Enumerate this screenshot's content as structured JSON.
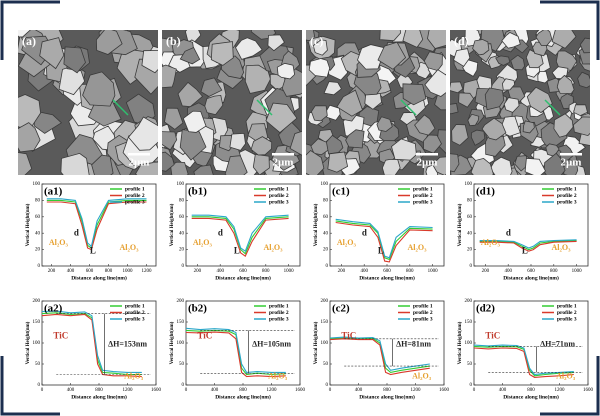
{
  "images": [
    {
      "label": "(a)",
      "scale": "2μm"
    },
    {
      "label": "(b)",
      "scale": "2μm"
    },
    {
      "label": "(c)",
      "scale": "2μm"
    },
    {
      "label": "(d)",
      "scale": "2μm"
    }
  ],
  "chart_data": [
    {
      "type": "line",
      "label": "(a1)",
      "xlabel": "Distance along line(nm)",
      "ylabel": "Vertical Height(nm)",
      "xlim": [
        100,
        1300
      ],
      "xticks": [
        200,
        400,
        600,
        800,
        1000,
        1200
      ],
      "ylim": [
        0,
        100
      ],
      "yticks": [
        0,
        20,
        40,
        60,
        80,
        100
      ],
      "x": [
        150,
        300,
        450,
        520,
        580,
        620,
        680,
        800,
        1000,
        1200
      ],
      "series": [
        {
          "name": "profile 1",
          "color": "#33cc33",
          "values": [
            80,
            80,
            78,
            55,
            25,
            22,
            50,
            78,
            80,
            80
          ]
        },
        {
          "name": "profile 2",
          "color": "#d93a2b",
          "values": [
            78,
            78,
            76,
            50,
            22,
            20,
            45,
            76,
            78,
            78
          ]
        },
        {
          "name": "profile 3",
          "color": "#2aa7c9",
          "values": [
            82,
            82,
            80,
            58,
            28,
            24,
            55,
            80,
            82,
            82
          ]
        }
      ],
      "annotations": [
        {
          "text": "Al₂O₃",
          "color": "#e6a030"
        },
        {
          "text": "Al₂O₃",
          "color": "#e6a030"
        },
        {
          "text": "d",
          "color": "#222222"
        },
        {
          "text": "L",
          "color": "#222222"
        }
      ]
    },
    {
      "type": "line",
      "label": "(b1)",
      "xlabel": "Distance along line(nm)",
      "ylabel": "Vertical Height(nm)",
      "xlim": [
        100,
        1100
      ],
      "xticks": [
        200,
        400,
        600,
        800,
        1000
      ],
      "ylim": [
        0,
        100
      ],
      "yticks": [
        0,
        20,
        40,
        60,
        80,
        100
      ],
      "x": [
        150,
        300,
        450,
        520,
        580,
        620,
        680,
        800,
        1000
      ],
      "series": [
        {
          "name": "profile 1",
          "color": "#33cc33",
          "values": [
            60,
            60,
            58,
            45,
            20,
            15,
            35,
            58,
            60
          ]
        },
        {
          "name": "profile 2",
          "color": "#d93a2b",
          "values": [
            58,
            58,
            56,
            40,
            16,
            12,
            30,
            56,
            58
          ]
        },
        {
          "name": "profile 3",
          "color": "#2aa7c9",
          "values": [
            62,
            62,
            60,
            48,
            22,
            18,
            40,
            60,
            62
          ]
        }
      ],
      "annotations": [
        {
          "text": "Al₂O₃",
          "color": "#e6a030"
        },
        {
          "text": "Al₂O₃",
          "color": "#e6a030"
        },
        {
          "text": "d",
          "color": "#222222"
        },
        {
          "text": "L",
          "color": "#222222"
        }
      ]
    },
    {
      "type": "line",
      "label": "(c1)",
      "xlabel": "Distance along line(nm)",
      "ylabel": "Vertical Height(nm)",
      "xlim": [
        100,
        1100
      ],
      "xticks": [
        200,
        400,
        600,
        800,
        1000
      ],
      "ylim": [
        0,
        100
      ],
      "yticks": [
        0,
        20,
        40,
        60,
        80,
        100
      ],
      "x": [
        150,
        300,
        450,
        520,
        580,
        620,
        680,
        800,
        1000
      ],
      "series": [
        {
          "name": "profile 1",
          "color": "#33cc33",
          "values": [
            55,
            52,
            50,
            40,
            10,
            8,
            30,
            46,
            45
          ]
        },
        {
          "name": "profile 2",
          "color": "#d93a2b",
          "values": [
            53,
            50,
            48,
            35,
            6,
            5,
            25,
            44,
            43
          ]
        },
        {
          "name": "profile 3",
          "color": "#2aa7c9",
          "values": [
            57,
            54,
            52,
            42,
            12,
            10,
            35,
            48,
            47
          ]
        }
      ],
      "annotations": [
        {
          "text": "Al₂O₃",
          "color": "#e6a030"
        },
        {
          "text": "Al₂O₃",
          "color": "#e6a030"
        },
        {
          "text": "d",
          "color": "#222222"
        },
        {
          "text": "L",
          "color": "#222222"
        }
      ]
    },
    {
      "type": "line",
      "label": "(d1)",
      "xlabel": "Distance along line(nm)",
      "ylabel": "Vertical Height(nm)",
      "xlim": [
        100,
        1100
      ],
      "xticks": [
        200,
        400,
        600,
        800,
        1000
      ],
      "ylim": [
        0,
        100
      ],
      "yticks": [
        0,
        20,
        40,
        60,
        80,
        100
      ],
      "x": [
        150,
        300,
        450,
        520,
        580,
        620,
        680,
        800,
        1000
      ],
      "series": [
        {
          "name": "profile 1",
          "color": "#33cc33",
          "values": [
            30,
            30,
            29,
            24,
            20,
            22,
            28,
            30,
            31
          ]
        },
        {
          "name": "profile 2",
          "color": "#d93a2b",
          "values": [
            29,
            29,
            28,
            22,
            18,
            20,
            26,
            29,
            30
          ]
        },
        {
          "name": "profile 3",
          "color": "#2aa7c9",
          "values": [
            31,
            31,
            30,
            26,
            22,
            24,
            30,
            31,
            32
          ]
        }
      ],
      "annotations": [
        {
          "text": "Al₂O₃",
          "color": "#e6a030"
        },
        {
          "text": "Al₂O₃",
          "color": "#e6a030"
        },
        {
          "text": "d",
          "color": "#222222"
        },
        {
          "text": "L",
          "color": "#222222"
        }
      ]
    },
    {
      "type": "line",
      "label": "(a2)",
      "xlabel": "Distance along line(nm)",
      "ylabel": "Vertical Height(nm)",
      "xlim": [
        0,
        1600
      ],
      "xticks": [
        0,
        400,
        800,
        1200,
        1600
      ],
      "ylim": [
        0,
        200
      ],
      "yticks": [
        0,
        50,
        100,
        150,
        200
      ],
      "x": [
        0,
        200,
        400,
        600,
        700,
        780,
        850,
        1000,
        1200,
        1400
      ],
      "series": [
        {
          "name": "profile 1",
          "color": "#33cc33",
          "values": [
            170,
            172,
            168,
            170,
            160,
            60,
            30,
            28,
            25,
            25
          ]
        },
        {
          "name": "profile 2",
          "color": "#d93a2b",
          "values": [
            165,
            168,
            165,
            168,
            155,
            50,
            25,
            22,
            22,
            20
          ]
        },
        {
          "name": "profile 3",
          "color": "#2aa7c9",
          "values": [
            175,
            176,
            172,
            174,
            165,
            70,
            35,
            32,
            30,
            30
          ]
        }
      ],
      "annotations": [
        {
          "text": "TiC",
          "color": "#c0392b"
        },
        {
          "text": "ΔH=153nm",
          "color": "#222222"
        },
        {
          "text": "Al₂O₃",
          "color": "#e6a030"
        }
      ]
    },
    {
      "type": "line",
      "label": "(b2)",
      "xlabel": "Distance along line(nm)",
      "ylabel": "Vertical Height(nm)",
      "xlim": [
        0,
        1600
      ],
      "xticks": [
        0,
        400,
        800,
        1200,
        1600
      ],
      "ylim": [
        0,
        200
      ],
      "yticks": [
        0,
        50,
        100,
        150,
        200
      ],
      "x": [
        0,
        200,
        400,
        600,
        700,
        780,
        850,
        1000,
        1200,
        1400
      ],
      "series": [
        {
          "name": "profile 1",
          "color": "#33cc33",
          "values": [
            130,
            128,
            130,
            128,
            120,
            40,
            25,
            28,
            25,
            27
          ]
        },
        {
          "name": "profile 2",
          "color": "#d93a2b",
          "values": [
            125,
            124,
            126,
            124,
            110,
            30,
            20,
            22,
            20,
            22
          ]
        },
        {
          "name": "profile 3",
          "color": "#2aa7c9",
          "values": [
            135,
            132,
            134,
            132,
            125,
            50,
            30,
            32,
            30,
            30
          ]
        }
      ],
      "annotations": [
        {
          "text": "TiC",
          "color": "#c0392b"
        },
        {
          "text": "ΔH=105nm",
          "color": "#222222"
        },
        {
          "text": "Al₂O₃",
          "color": "#e6a030"
        }
      ]
    },
    {
      "type": "line",
      "label": "(c2)",
      "xlabel": "Distance along line(nm)",
      "ylabel": "Vertical Height(nm)",
      "xlim": [
        0,
        1600
      ],
      "xticks": [
        0,
        400,
        800,
        1200,
        1600
      ],
      "ylim": [
        0,
        200
      ],
      "yticks": [
        0,
        50,
        100,
        150,
        200
      ],
      "x": [
        0,
        200,
        400,
        600,
        700,
        780,
        850,
        1000,
        1200,
        1400
      ],
      "series": [
        {
          "name": "profile 1",
          "color": "#33cc33",
          "values": [
            110,
            112,
            110,
            111,
            100,
            40,
            30,
            35,
            40,
            45
          ]
        },
        {
          "name": "profile 2",
          "color": "#d93a2b",
          "values": [
            108,
            110,
            108,
            108,
            95,
            30,
            25,
            30,
            35,
            40
          ]
        },
        {
          "name": "profile 3",
          "color": "#2aa7c9",
          "values": [
            112,
            114,
            112,
            113,
            105,
            50,
            35,
            40,
            45,
            50
          ]
        }
      ],
      "annotations": [
        {
          "text": "TiC",
          "color": "#c0392b"
        },
        {
          "text": "ΔH=81nm",
          "color": "#222222"
        },
        {
          "text": "Al₂O₃",
          "color": "#e6a030"
        }
      ]
    },
    {
      "type": "line",
      "label": "(d2)",
      "xlabel": "Distance along line(nm)",
      "ylabel": "Vertical Height(nm)",
      "xlim": [
        0,
        1600
      ],
      "xticks": [
        0,
        400,
        800,
        1200,
        1600
      ],
      "ylim": [
        0,
        200
      ],
      "yticks": [
        0,
        50,
        100,
        150,
        200
      ],
      "x": [
        0,
        200,
        400,
        600,
        700,
        780,
        850,
        1000,
        1200,
        1400
      ],
      "series": [
        {
          "name": "profile 1",
          "color": "#33cc33",
          "values": [
            92,
            90,
            92,
            91,
            85,
            35,
            22,
            25,
            28,
            30
          ]
        },
        {
          "name": "profile 2",
          "color": "#d93a2b",
          "values": [
            88,
            86,
            88,
            87,
            80,
            25,
            18,
            20,
            22,
            25
          ]
        },
        {
          "name": "profile 3",
          "color": "#2aa7c9",
          "values": [
            95,
            93,
            95,
            94,
            88,
            40,
            25,
            28,
            30,
            32
          ]
        }
      ],
      "annotations": [
        {
          "text": "TiC",
          "color": "#c0392b"
        },
        {
          "text": "ΔH=71nm",
          "color": "#222222"
        },
        {
          "text": "Al₂O₃",
          "color": "#e6a030"
        }
      ]
    }
  ]
}
